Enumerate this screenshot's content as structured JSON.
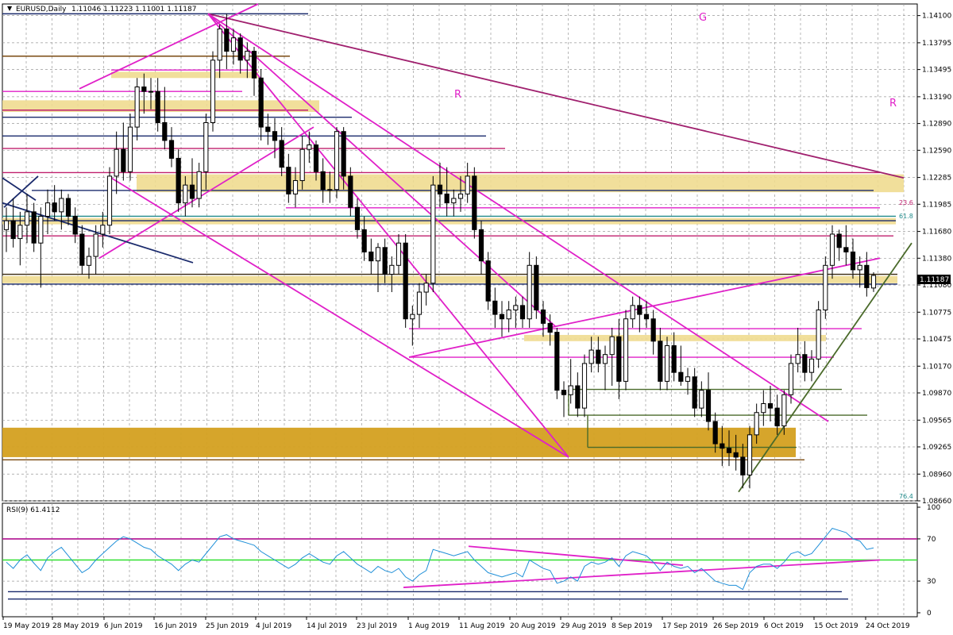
{
  "chart_data": {
    "type": "candlestick",
    "header": {
      "symbol": "EURUSD,Daily",
      "ohlc": "1.11046 1.11223 1.11001 1.11187"
    },
    "price_axis": {
      "ticks": [
        "1.14100",
        "1.13795",
        "1.13495",
        "1.13190",
        "1.12890",
        "1.12590",
        "1.12285",
        "1.11985",
        "1.11680",
        "1.11380",
        "1.11080",
        "1.10775",
        "1.10475",
        "1.10170",
        "1.09870",
        "1.09565",
        "1.09265",
        "1.08960",
        "1.08660"
      ],
      "range": [
        1.0866,
        1.1423
      ],
      "current_price": "1.11187"
    },
    "date_axis": {
      "labels": [
        "19 May 2019",
        "28 May 2019",
        "6 Jun 2019",
        "16 Jun 2019",
        "25 Jun 2019",
        "4 Jul 2019",
        "14 Jul 2019",
        "23 Jul 2019",
        "1 Aug 2019",
        "11 Aug 2019",
        "20 Aug 2019",
        "29 Aug 2019",
        "8 Sep 2019",
        "17 Sep 2019",
        "26 Sep 2019",
        "6 Oct 2019",
        "15 Oct 2019",
        "24 Oct 2019"
      ]
    },
    "annotations": {
      "letters": [
        {
          "text": "G",
          "color": "#e020c8"
        },
        {
          "text": "R",
          "color": "#e020c8"
        },
        {
          "text": "R",
          "color": "#e020c8"
        }
      ],
      "fib_labels": [
        {
          "text": "23.6",
          "color": "#c0206e"
        },
        {
          "text": "61.8",
          "color": "#208a8a"
        },
        {
          "text": "76.4",
          "color": "#208a8a"
        }
      ]
    },
    "candles": [
      [
        1.117,
        1.1195,
        1.1145,
        1.118
      ],
      [
        1.118,
        1.1205,
        1.115,
        1.116
      ],
      [
        1.116,
        1.119,
        1.113,
        1.1175
      ],
      [
        1.1175,
        1.121,
        1.1155,
        1.119
      ],
      [
        1.119,
        1.12,
        1.1145,
        1.1155
      ],
      [
        1.1155,
        1.1195,
        1.1105,
        1.1185
      ],
      [
        1.1185,
        1.1215,
        1.1165,
        1.12
      ],
      [
        1.12,
        1.122,
        1.118,
        1.119
      ],
      [
        1.119,
        1.1215,
        1.117,
        1.1205
      ],
      [
        1.1205,
        1.121,
        1.1175,
        1.1185
      ],
      [
        1.1185,
        1.1195,
        1.1155,
        1.1165
      ],
      [
        1.1165,
        1.1175,
        1.112,
        1.113
      ],
      [
        1.113,
        1.115,
        1.1115,
        1.114
      ],
      [
        1.114,
        1.1175,
        1.112,
        1.1165
      ],
      [
        1.1165,
        1.119,
        1.115,
        1.1175
      ],
      [
        1.1175,
        1.124,
        1.1165,
        1.123
      ],
      [
        1.123,
        1.128,
        1.121,
        1.126
      ],
      [
        1.126,
        1.129,
        1.1225,
        1.1235
      ],
      [
        1.1235,
        1.13,
        1.1225,
        1.1285
      ],
      [
        1.1285,
        1.134,
        1.127,
        1.133
      ],
      [
        1.133,
        1.1345,
        1.13,
        1.1325
      ],
      [
        1.1325,
        1.134,
        1.1305,
        1.1325
      ],
      [
        1.1325,
        1.134,
        1.128,
        1.129
      ],
      [
        1.129,
        1.133,
        1.126,
        1.127
      ],
      [
        1.127,
        1.1285,
        1.124,
        1.125
      ],
      [
        1.125,
        1.126,
        1.119,
        1.12
      ],
      [
        1.12,
        1.123,
        1.1185,
        1.122
      ],
      [
        1.122,
        1.125,
        1.1195,
        1.1205
      ],
      [
        1.1205,
        1.1245,
        1.1195,
        1.1235
      ],
      [
        1.1235,
        1.13,
        1.1215,
        1.129
      ],
      [
        1.129,
        1.137,
        1.128,
        1.136
      ],
      [
        1.136,
        1.14,
        1.134,
        1.1395
      ],
      [
        1.1395,
        1.1412,
        1.135,
        1.137
      ],
      [
        1.137,
        1.1395,
        1.1355,
        1.1385
      ],
      [
        1.1385,
        1.139,
        1.1345,
        1.136
      ],
      [
        1.136,
        1.138,
        1.134,
        1.137
      ],
      [
        1.137,
        1.1375,
        1.132,
        1.134
      ],
      [
        1.134,
        1.135,
        1.127,
        1.1285
      ],
      [
        1.1285,
        1.13,
        1.1265,
        1.128
      ],
      [
        1.128,
        1.1295,
        1.125,
        1.127
      ],
      [
        1.127,
        1.1285,
        1.123,
        1.124
      ],
      [
        1.124,
        1.1255,
        1.12,
        1.121
      ],
      [
        1.121,
        1.124,
        1.1195,
        1.1225
      ],
      [
        1.1225,
        1.1275,
        1.1215,
        1.126
      ],
      [
        1.126,
        1.128,
        1.1245,
        1.1265
      ],
      [
        1.1265,
        1.127,
        1.1225,
        1.1235
      ],
      [
        1.1235,
        1.125,
        1.12,
        1.1215
      ],
      [
        1.1215,
        1.1235,
        1.12,
        1.1215
      ],
      [
        1.1215,
        1.1285,
        1.1205,
        1.128
      ],
      [
        1.128,
        1.1285,
        1.1215,
        1.123
      ],
      [
        1.123,
        1.124,
        1.1185,
        1.1195
      ],
      [
        1.1195,
        1.1205,
        1.116,
        1.117
      ],
      [
        1.117,
        1.1185,
        1.1135,
        1.1145
      ],
      [
        1.1145,
        1.116,
        1.112,
        1.1135
      ],
      [
        1.1135,
        1.1155,
        1.11,
        1.115
      ],
      [
        1.115,
        1.116,
        1.111,
        1.112
      ],
      [
        1.112,
        1.114,
        1.11,
        1.113
      ],
      [
        1.113,
        1.1165,
        1.112,
        1.1155
      ],
      [
        1.1155,
        1.1165,
        1.106,
        1.107
      ],
      [
        1.107,
        1.1085,
        1.104,
        1.1075
      ],
      [
        1.1075,
        1.111,
        1.106,
        1.11
      ],
      [
        1.11,
        1.112,
        1.1085,
        1.111
      ],
      [
        1.111,
        1.123,
        1.11,
        1.122
      ],
      [
        1.122,
        1.1245,
        1.1195,
        1.121
      ],
      [
        1.121,
        1.124,
        1.1185,
        1.12
      ],
      [
        1.12,
        1.1215,
        1.1185,
        1.1205
      ],
      [
        1.1205,
        1.123,
        1.119,
        1.121
      ],
      [
        1.121,
        1.1245,
        1.12,
        1.123
      ],
      [
        1.123,
        1.124,
        1.116,
        1.117
      ],
      [
        1.117,
        1.118,
        1.112,
        1.1135
      ],
      [
        1.1135,
        1.1145,
        1.108,
        1.109
      ],
      [
        1.109,
        1.1105,
        1.106,
        1.1075
      ],
      [
        1.1075,
        1.109,
        1.105,
        1.107
      ],
      [
        1.107,
        1.109,
        1.1055,
        1.108
      ],
      [
        1.108,
        1.1095,
        1.106,
        1.1085
      ],
      [
        1.1085,
        1.1095,
        1.106,
        1.107
      ],
      [
        1.107,
        1.1145,
        1.106,
        1.113
      ],
      [
        1.113,
        1.114,
        1.107,
        1.108
      ],
      [
        1.108,
        1.109,
        1.105,
        1.1065
      ],
      [
        1.1065,
        1.1075,
        1.104,
        1.1055
      ],
      [
        1.1055,
        1.106,
        1.098,
        1.099
      ],
      [
        1.099,
        1.1,
        1.096,
        1.0985
      ],
      [
        1.0985,
        1.1025,
        1.0975,
        1.0995
      ],
      [
        1.0995,
        1.101,
        1.096,
        1.097
      ],
      [
        1.097,
        1.103,
        1.096,
        1.102
      ],
      [
        1.102,
        1.105,
        1.101,
        1.1035
      ],
      [
        1.1035,
        1.105,
        1.101,
        1.102
      ],
      [
        1.102,
        1.104,
        1.099,
        1.103
      ],
      [
        1.103,
        1.106,
        1.0995,
        1.105
      ],
      [
        1.105,
        1.107,
        1.098,
        1.1
      ],
      [
        1.1,
        1.108,
        1.099,
        1.107
      ],
      [
        1.107,
        1.1095,
        1.106,
        1.1085
      ],
      [
        1.1085,
        1.1095,
        1.1055,
        1.1075
      ],
      [
        1.1075,
        1.109,
        1.106,
        1.107
      ],
      [
        1.107,
        1.108,
        1.103,
        1.1045
      ],
      [
        1.1045,
        1.106,
        1.099,
        1.1
      ],
      [
        1.1,
        1.105,
        1.099,
        1.104
      ],
      [
        1.104,
        1.1055,
        1.1,
        1.101
      ],
      [
        1.101,
        1.104,
        1.0995,
        1.1
      ],
      [
        1.1,
        1.1015,
        1.0985,
        1.1005
      ],
      [
        1.1005,
        1.1015,
        1.096,
        1.097
      ],
      [
        1.097,
        1.1,
        1.096,
        1.099
      ],
      [
        1.099,
        1.101,
        1.0945,
        1.0955
      ],
      [
        1.0955,
        1.0965,
        1.092,
        1.093
      ],
      [
        1.093,
        1.095,
        1.0905,
        1.0925
      ],
      [
        1.0925,
        1.0945,
        1.0905,
        1.092
      ],
      [
        1.092,
        1.094,
        1.09,
        1.0915
      ],
      [
        1.0915,
        1.093,
        1.088,
        1.0895
      ],
      [
        1.0895,
        1.095,
        1.088,
        1.094
      ],
      [
        1.094,
        1.0975,
        1.093,
        1.0965
      ],
      [
        1.0965,
        1.099,
        1.095,
        1.0975
      ],
      [
        1.0975,
        1.0995,
        1.0955,
        1.097
      ],
      [
        1.097,
        1.0985,
        1.094,
        1.095
      ],
      [
        1.095,
        1.099,
        1.094,
        1.0985
      ],
      [
        1.0985,
        1.103,
        1.0975,
        1.102
      ],
      [
        1.102,
        1.106,
        1.101,
        1.103
      ],
      [
        1.103,
        1.1045,
        1.1,
        1.101
      ],
      [
        1.101,
        1.1035,
        1.1,
        1.1025
      ],
      [
        1.1025,
        1.109,
        1.1015,
        1.108
      ],
      [
        1.108,
        1.114,
        1.107,
        1.113
      ],
      [
        1.113,
        1.1175,
        1.1115,
        1.1165
      ],
      [
        1.1165,
        1.117,
        1.1135,
        1.115
      ],
      [
        1.115,
        1.1175,
        1.113,
        1.1145
      ],
      [
        1.1145,
        1.116,
        1.1115,
        1.1125
      ],
      [
        1.1125,
        1.114,
        1.1105,
        1.113
      ],
      [
        1.113,
        1.1145,
        1.1095,
        1.1105
      ],
      [
        1.11046,
        1.11223,
        1.11001,
        1.11187
      ]
    ],
    "rsi": {
      "label": "RSI(9) 61.4112",
      "ticks": [
        "100",
        "70",
        "30",
        "0"
      ],
      "range": [
        0,
        100
      ],
      "values": [
        48,
        42,
        50,
        55,
        47,
        40,
        52,
        58,
        62,
        54,
        46,
        38,
        42,
        50,
        56,
        62,
        68,
        72,
        70,
        66,
        62,
        60,
        54,
        50,
        46,
        40,
        46,
        50,
        48,
        56,
        64,
        72,
        74,
        70,
        68,
        66,
        64,
        58,
        54,
        50,
        46,
        42,
        46,
        52,
        56,
        52,
        48,
        46,
        54,
        58,
        52,
        46,
        42,
        38,
        44,
        40,
        38,
        42,
        34,
        30,
        36,
        40,
        60,
        58,
        56,
        54,
        56,
        58,
        50,
        44,
        38,
        36,
        34,
        36,
        38,
        34,
        50,
        46,
        42,
        40,
        28,
        30,
        34,
        30,
        44,
        48,
        46,
        48,
        52,
        44,
        54,
        58,
        56,
        54,
        48,
        40,
        48,
        44,
        42,
        44,
        38,
        42,
        36,
        30,
        28,
        26,
        26,
        22,
        38,
        44,
        46,
        46,
        42,
        48,
        56,
        58,
        54,
        56,
        64,
        72,
        80,
        78,
        76,
        70,
        68,
        60,
        61.4112
      ],
      "levels": [
        70,
        50,
        30
      ]
    }
  }
}
